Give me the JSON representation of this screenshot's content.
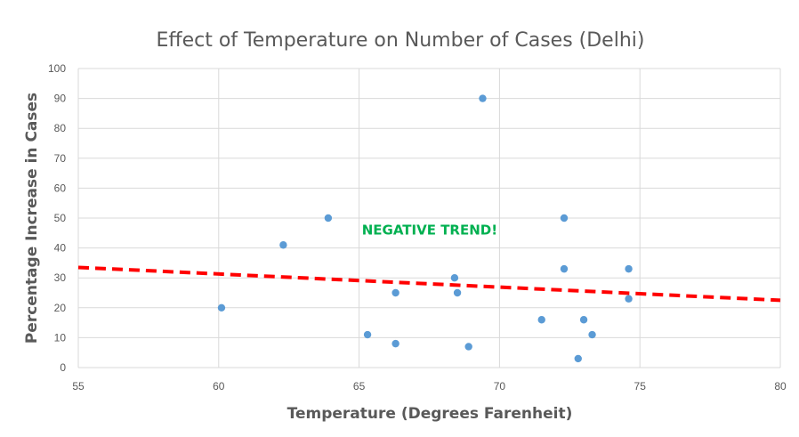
{
  "chart_data": {
    "type": "scatter",
    "title": "Effect of Temperature on Number of Cases (Delhi)",
    "xlabel": "Temperature (Degrees Farenheit)",
    "ylabel": "Percentage Increase in Cases",
    "xlim": [
      55,
      80
    ],
    "ylim": [
      0,
      100
    ],
    "x_ticks": [
      55,
      60,
      65,
      70,
      75,
      80
    ],
    "y_ticks": [
      0,
      10,
      20,
      30,
      40,
      50,
      60,
      70,
      80,
      90,
      100
    ],
    "grid": true,
    "legend": "none",
    "point_color": "#5b9bd5",
    "points": [
      {
        "x": 60.1,
        "y": 20
      },
      {
        "x": 62.3,
        "y": 41
      },
      {
        "x": 63.9,
        "y": 50
      },
      {
        "x": 65.3,
        "y": 11
      },
      {
        "x": 66.3,
        "y": 25
      },
      {
        "x": 66.3,
        "y": 8
      },
      {
        "x": 68.4,
        "y": 30
      },
      {
        "x": 68.5,
        "y": 25
      },
      {
        "x": 68.9,
        "y": 7
      },
      {
        "x": 69.4,
        "y": 90
      },
      {
        "x": 71.5,
        "y": 16
      },
      {
        "x": 72.3,
        "y": 50
      },
      {
        "x": 72.3,
        "y": 33
      },
      {
        "x": 72.8,
        "y": 3
      },
      {
        "x": 73.0,
        "y": 16
      },
      {
        "x": 73.3,
        "y": 11
      },
      {
        "x": 74.6,
        "y": 33
      },
      {
        "x": 74.6,
        "y": 23
      }
    ],
    "trendline": {
      "color": "#ff0000",
      "style": "dashed",
      "start": {
        "x": 55,
        "y": 33.5
      },
      "end": {
        "x": 80,
        "y": 22.5
      }
    },
    "annotation": {
      "text": "NEGATIVE TREND!",
      "color": "#00b050",
      "x": 65.1,
      "y": 44.5
    }
  }
}
